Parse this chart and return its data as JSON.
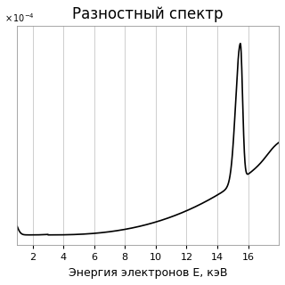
{
  "title": "Разностный спектр",
  "xlabel": "Энергия электронов E, кэВ",
  "xlim": [
    1,
    18
  ],
  "ylim": [
    -0.3,
    6.0
  ],
  "xticks": [
    2,
    4,
    6,
    8,
    10,
    12,
    14,
    16
  ],
  "yticks": [],
  "line_color": "#000000",
  "background_color": "#ffffff",
  "grid_color": "#bbbbbb",
  "title_fontsize": 12,
  "label_fontsize": 9,
  "linewidth": 1.2
}
